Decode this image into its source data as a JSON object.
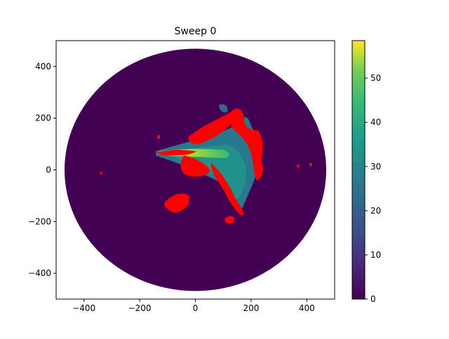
{
  "chart_data": {
    "type": "heatmap",
    "title": "Sweep 0",
    "xlabel": "",
    "ylabel": "",
    "xlim": [
      -500,
      500
    ],
    "ylim": [
      -500,
      500
    ],
    "x_ticks": [
      -400,
      -200,
      0,
      200,
      400
    ],
    "y_ticks": [
      400,
      200,
      0,
      -200,
      -400
    ],
    "x_tick_labels": [
      "−400",
      "−200",
      "0",
      "200",
      "400"
    ],
    "y_tick_labels": [
      "400",
      "200",
      "0",
      "−200",
      "−400"
    ],
    "domain_radius": 470,
    "colorbar": {
      "range": [
        0,
        58.5
      ],
      "ticks": [
        0,
        10,
        20,
        30,
        40,
        50
      ],
      "tick_labels": [
        "0",
        "10",
        "20",
        "30",
        "40",
        "50"
      ],
      "colormap": "viridis"
    },
    "grid": false,
    "overlay_color": "#ff0000"
  }
}
